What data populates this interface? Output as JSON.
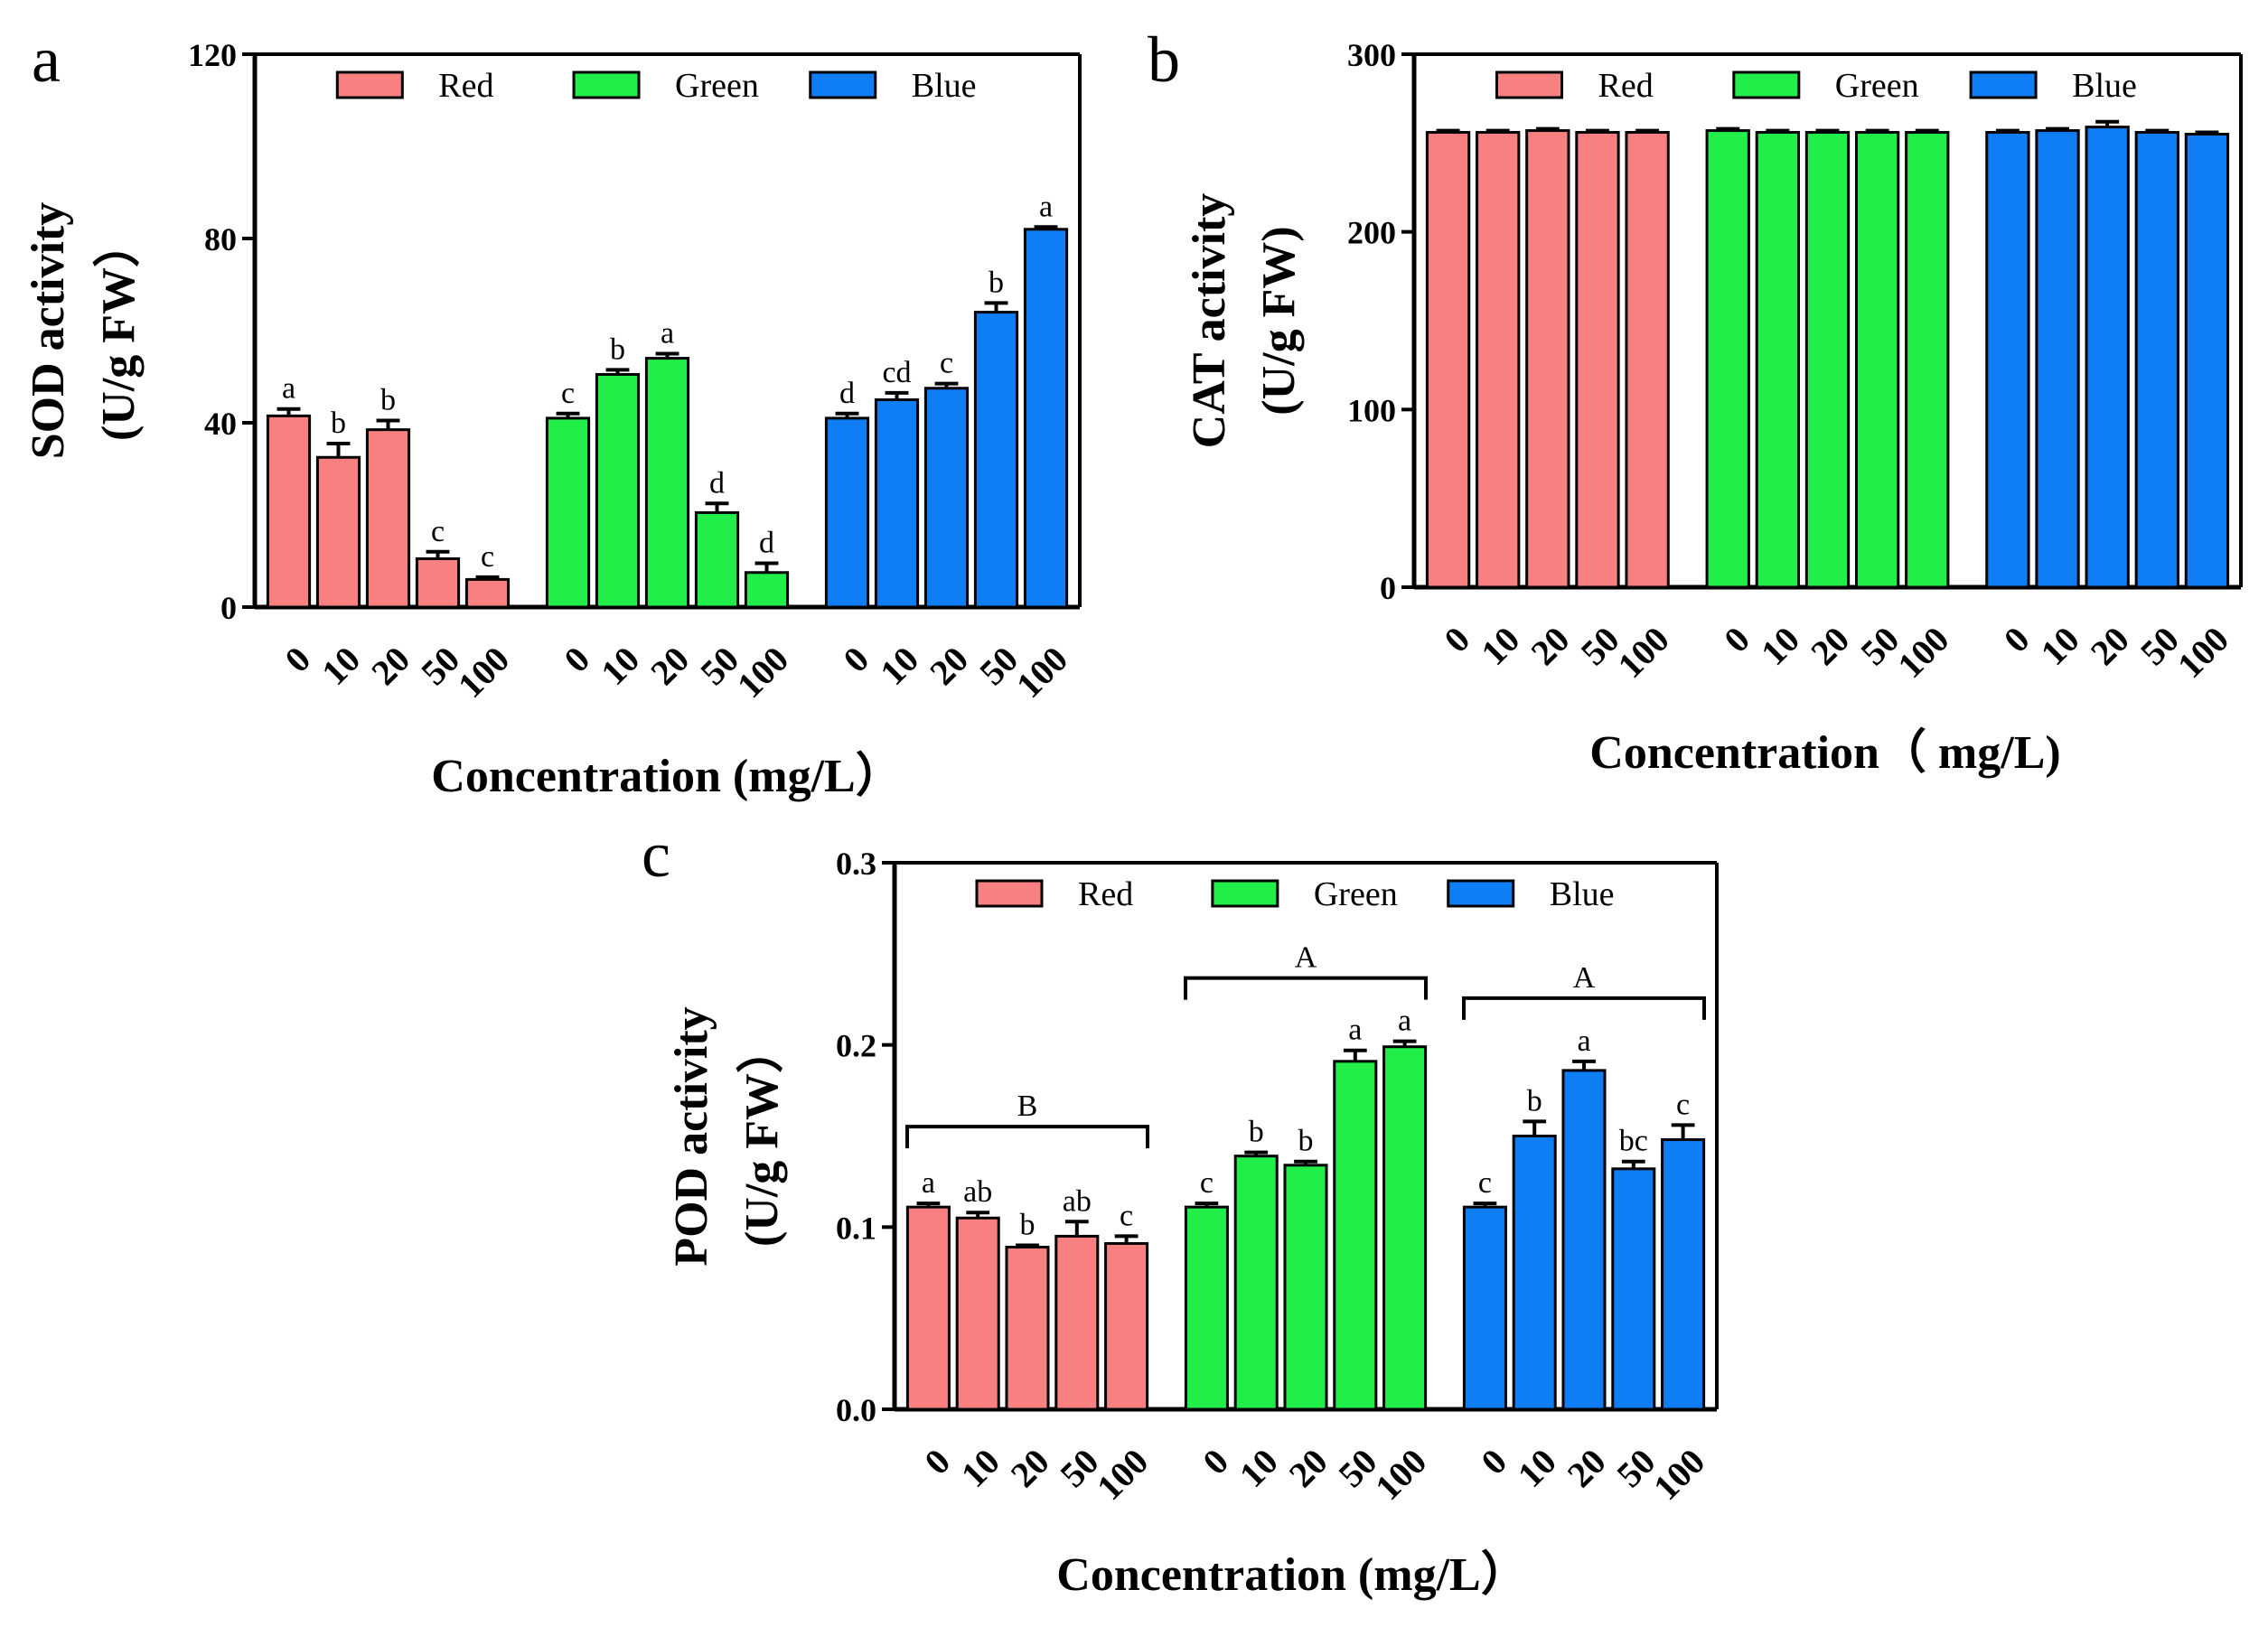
{
  "figure": {
    "colors": {
      "Red": "#f88080",
      "Green": "#22ee4a",
      "Blue": "#0f7ef5",
      "axis": "#000000"
    }
  },
  "chart_data": [
    {
      "panel": "a",
      "type": "bar",
      "title": "",
      "xlabel": "Concentration (mg/L）",
      "ylabel_lines": [
        "SOD activity",
        "(U/g FW）"
      ],
      "ylim": [
        0,
        120
      ],
      "yticks": [
        "0",
        "40",
        "80",
        "120"
      ],
      "categories": [
        "0",
        "10",
        "20",
        "50",
        "100"
      ],
      "legend": [
        "Red",
        "Green",
        "Blue"
      ],
      "legend_position": "top",
      "series": [
        {
          "name": "Red",
          "values": [
            41.5,
            32.5,
            38.5,
            10.5,
            6.0
          ],
          "errors": [
            1.5,
            3.0,
            2.0,
            1.5,
            0.5
          ],
          "letters": [
            "a",
            "b",
            "b",
            "c",
            "c"
          ]
        },
        {
          "name": "Green",
          "values": [
            41.0,
            50.5,
            54.0,
            20.5,
            7.5
          ],
          "errors": [
            1.0,
            1.0,
            1.0,
            2.0,
            2.0
          ],
          "letters": [
            "c",
            "b",
            "a",
            "d",
            "d"
          ]
        },
        {
          "name": "Blue",
          "values": [
            41.0,
            45.0,
            47.5,
            64.0,
            82.0
          ],
          "errors": [
            1.0,
            1.5,
            1.0,
            2.0,
            0.5
          ],
          "letters": [
            "d",
            "cd",
            "c",
            "b",
            "a"
          ]
        }
      ],
      "group_letters": []
    },
    {
      "panel": "b",
      "type": "bar",
      "title": "",
      "xlabel": "Concentration（ mg/L)",
      "ylabel_lines": [
        "CAT activity",
        "(U/g FW)"
      ],
      "ylim": [
        0,
        300
      ],
      "yticks": [
        "0",
        "100",
        "200",
        "300"
      ],
      "categories": [
        "0",
        "10",
        "20",
        "50",
        "100"
      ],
      "legend": [
        "Red",
        "Green",
        "Blue"
      ],
      "legend_position": "top",
      "series": [
        {
          "name": "Red",
          "values": [
            256,
            256,
            257,
            256,
            256
          ],
          "errors": [
            1,
            1,
            1,
            1,
            1
          ],
          "letters": []
        },
        {
          "name": "Green",
          "values": [
            257,
            256,
            256,
            256,
            256
          ],
          "errors": [
            1,
            1,
            1,
            1,
            1
          ],
          "letters": []
        },
        {
          "name": "Blue",
          "values": [
            256,
            257,
            259,
            256,
            255
          ],
          "errors": [
            1,
            1,
            3,
            1,
            1
          ],
          "letters": []
        }
      ],
      "group_letters": []
    },
    {
      "panel": "c",
      "type": "bar",
      "title": "",
      "xlabel": "Concentration (mg/L）",
      "ylabel_lines": [
        "POD activity",
        "(U/g FW）"
      ],
      "ylim": [
        0,
        0.3
      ],
      "yticks": [
        "0.0",
        "0.1",
        "0.2",
        "0.3"
      ],
      "categories": [
        "0",
        "10",
        "20",
        "50",
        "100"
      ],
      "legend": [
        "Red",
        "Green",
        "Blue"
      ],
      "legend_position": "top",
      "series": [
        {
          "name": "Red",
          "values": [
            0.111,
            0.105,
            0.089,
            0.095,
            0.091
          ],
          "errors": [
            0.002,
            0.003,
            0.001,
            0.008,
            0.004
          ],
          "letters": [
            "a",
            "ab",
            "b",
            "ab",
            "c"
          ]
        },
        {
          "name": "Green",
          "values": [
            0.111,
            0.139,
            0.134,
            0.191,
            0.199
          ],
          "errors": [
            0.002,
            0.002,
            0.002,
            0.006,
            0.003
          ],
          "letters": [
            "c",
            "b",
            "b",
            "a",
            "a"
          ]
        },
        {
          "name": "Blue",
          "values": [
            0.111,
            0.15,
            0.186,
            0.132,
            0.148
          ],
          "errors": [
            0.002,
            0.008,
            0.005,
            0.004,
            0.008
          ],
          "letters": [
            "c",
            "b",
            "a",
            "bc",
            "c"
          ]
        }
      ],
      "group_letters": [
        "B",
        "A",
        "A"
      ]
    }
  ]
}
